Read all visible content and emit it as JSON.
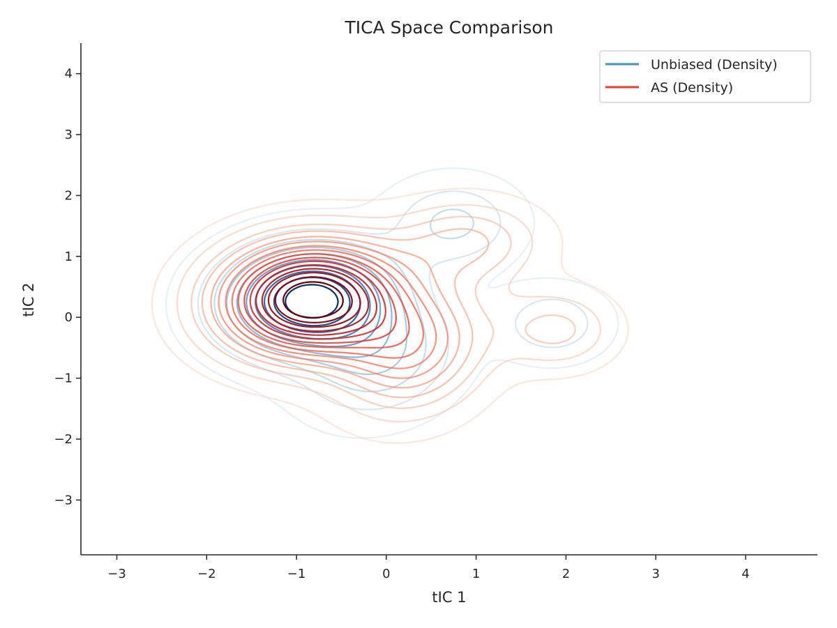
{
  "chart_data": {
    "type": "contour",
    "title": "TICA Space Comparison",
    "xlabel": "tIC 1",
    "ylabel": "tIC 2",
    "xlim": [
      -3.4,
      4.8
    ],
    "ylim": [
      -3.9,
      4.5
    ],
    "x_ticks": [
      -3,
      -2,
      -1,
      0,
      1,
      2,
      3,
      4
    ],
    "y_ticks": [
      -3,
      -2,
      -1,
      0,
      1,
      2,
      3,
      4
    ],
    "x_tick_labels": [
      "−3",
      "−2",
      "−1",
      "0",
      "1",
      "2",
      "3",
      "4"
    ],
    "y_tick_labels": [
      "−3",
      "−2",
      "−1",
      "0",
      "1",
      "2",
      "3",
      "4"
    ],
    "grid": false,
    "legend_position": "top-right",
    "series": [
      {
        "name": "Unbiased (Density)",
        "color": "#4292c6",
        "colormap": "Blues",
        "levels": 10,
        "components": [
          {
            "w": 0.62,
            "mx": -0.85,
            "my": 0.28,
            "sx": 0.62,
            "sy": 0.58,
            "rho": 0.05
          },
          {
            "w": 0.16,
            "mx": 0.75,
            "my": 1.55,
            "sx": 0.45,
            "sy": 0.45,
            "rho": 0.0
          },
          {
            "w": 0.14,
            "mx": 1.85,
            "my": -0.1,
            "sx": 0.38,
            "sy": 0.38,
            "rho": 0.0
          },
          {
            "w": 0.18,
            "mx": -0.05,
            "my": -0.75,
            "sx": 0.55,
            "sy": 0.6,
            "rho": 0.2
          }
        ]
      },
      {
        "name": "AS (Density)",
        "color": "#ef3b2c",
        "colormap": "Reds",
        "levels": 16,
        "components": [
          {
            "w": 0.6,
            "mx": -0.85,
            "my": 0.3,
            "sx": 0.68,
            "sy": 0.63,
            "rho": 0.05
          },
          {
            "w": 0.22,
            "mx": 0.3,
            "my": -0.55,
            "sx": 0.55,
            "sy": 0.7,
            "rho": 0.15
          },
          {
            "w": 0.13,
            "mx": 0.9,
            "my": 1.25,
            "sx": 0.55,
            "sy": 0.45,
            "rho": 0.0
          },
          {
            "w": 0.1,
            "mx": 1.9,
            "my": -0.2,
            "sx": 0.45,
            "sy": 0.45,
            "rho": 0.0
          }
        ]
      }
    ]
  }
}
